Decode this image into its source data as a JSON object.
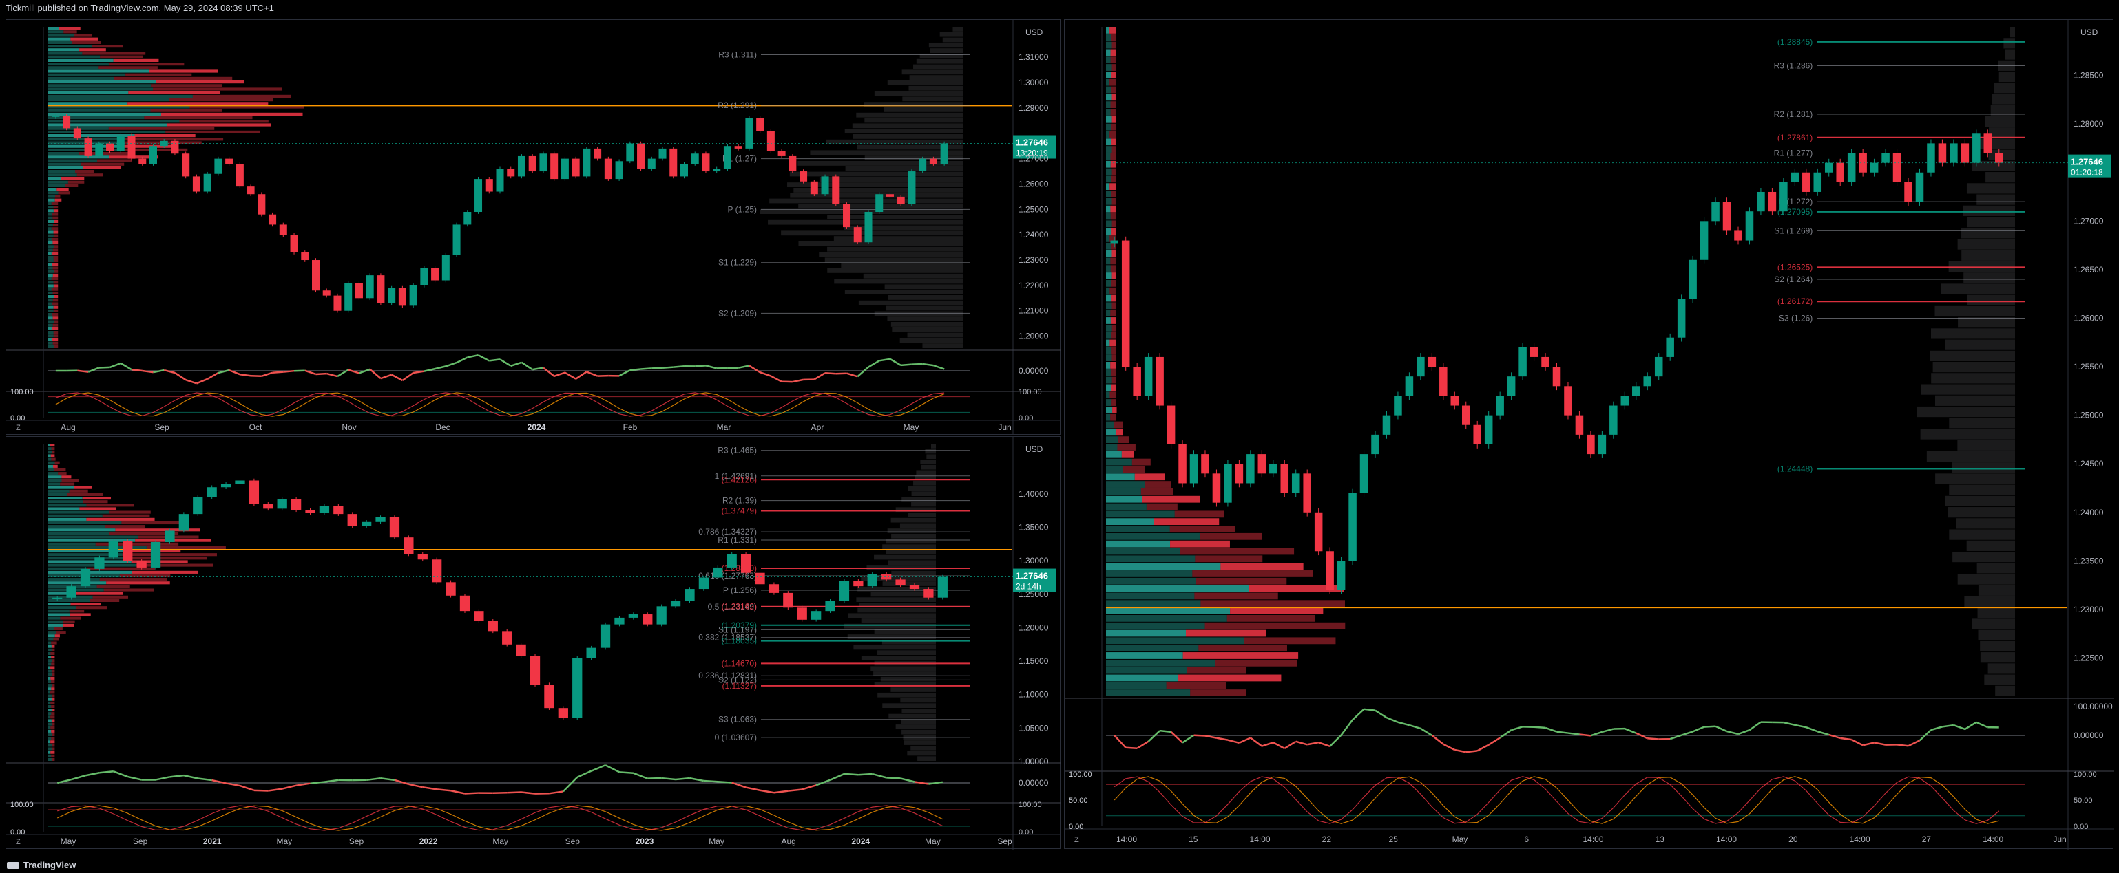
{
  "header": {
    "publisher_line": "Tickmill published on TradingView.com, May 29, 2024 08:39 UTC+1"
  },
  "footer": {
    "brand": "TradingView"
  },
  "panels": [
    {
      "id": "daily",
      "currency": "USD",
      "price_tag": "1.27646",
      "countdown": "13:20:19",
      "chart_data": {
        "type": "candlestick",
        "symbol": "GBPUSD",
        "x_ticks": [
          "Aug",
          "Sep",
          "Oct",
          "Nov",
          "Dec",
          "2024",
          "Feb",
          "Mar",
          "Apr",
          "May",
          "Jun"
        ],
        "y_ticks": [
          "1.31000",
          "1.30000",
          "1.29000",
          "1.28000",
          "1.27000",
          "1.26000",
          "1.25000",
          "1.24000",
          "1.23000",
          "1.22000",
          "1.21000",
          "1.20000"
        ],
        "ylim": [
          1.195,
          1.322
        ],
        "closes": [
          1.287,
          1.282,
          1.278,
          1.271,
          1.276,
          1.273,
          1.279,
          1.27,
          1.268,
          1.275,
          1.277,
          1.272,
          1.263,
          1.257,
          1.264,
          1.27,
          1.268,
          1.259,
          1.256,
          1.248,
          1.244,
          1.24,
          1.233,
          1.23,
          1.218,
          1.216,
          1.21,
          1.221,
          1.215,
          1.224,
          1.213,
          1.219,
          1.212,
          1.22,
          1.227,
          1.222,
          1.232,
          1.244,
          1.249,
          1.262,
          1.257,
          1.266,
          1.263,
          1.271,
          1.265,
          1.272,
          1.262,
          1.27,
          1.263,
          1.274,
          1.27,
          1.262,
          1.269,
          1.276,
          1.266,
          1.27,
          1.274,
          1.263,
          1.268,
          1.272,
          1.265,
          1.266,
          1.275,
          1.274,
          1.286,
          1.281,
          1.273,
          1.271,
          1.265,
          1.261,
          1.256,
          1.263,
          1.252,
          1.243,
          1.237,
          1.249,
          1.256,
          1.255,
          1.252,
          1.265,
          1.27,
          1.268,
          1.276
        ],
        "levels": [
          {
            "label": "R3 (1.311)",
            "value": 1.311
          },
          {
            "label": "R2 (1.291)",
            "value": 1.291
          },
          {
            "label": "R1 (1.27)",
            "value": 1.27
          },
          {
            "label": "P (1.25)",
            "value": 1.25
          },
          {
            "label": "S1 (1.229)",
            "value": 1.229
          },
          {
            "label": "S2 (1.209)",
            "value": 1.209
          }
        ],
        "oscillator_ticks": [
          "0.00000"
        ],
        "stoch_ticks": [
          "100.00",
          "0.00"
        ]
      }
    },
    {
      "id": "weekly",
      "currency": "USD",
      "price_tag": "1.27646",
      "countdown": "2d 14h",
      "chart_data": {
        "type": "candlestick",
        "symbol": "GBPUSD",
        "x_ticks": [
          "May",
          "Sep",
          "2021",
          "May",
          "Sep",
          "2022",
          "May",
          "Sep",
          "2023",
          "May",
          "Aug",
          "2024",
          "May",
          "Sep"
        ],
        "y_ticks": [
          "1.40000",
          "1.35000",
          "1.30000",
          "1.25000",
          "1.20000",
          "1.15000",
          "1.10000",
          "1.05000",
          "1.00000"
        ],
        "ylim": [
          1.0,
          1.475
        ],
        "closes": [
          1.245,
          1.262,
          1.288,
          1.305,
          1.33,
          1.3,
          1.29,
          1.328,
          1.345,
          1.37,
          1.395,
          1.41,
          1.415,
          1.42,
          1.385,
          1.378,
          1.392,
          1.376,
          1.372,
          1.382,
          1.37,
          1.352,
          1.358,
          1.365,
          1.335,
          1.31,
          1.302,
          1.268,
          1.248,
          1.225,
          1.21,
          1.195,
          1.175,
          1.158,
          1.115,
          1.08,
          1.065,
          1.155,
          1.17,
          1.205,
          1.215,
          1.22,
          1.205,
          1.232,
          1.24,
          1.258,
          1.275,
          1.29,
          1.31,
          1.282,
          1.265,
          1.252,
          1.23,
          1.212,
          1.225,
          1.24,
          1.27,
          1.262,
          1.28,
          1.272,
          1.264,
          1.258,
          1.245,
          1.276
        ],
        "levels": [
          {
            "label": "1 (1.42691)",
            "value": 1.42691
          },
          {
            "label": "(1.42126)",
            "value": 1.42126
          },
          {
            "label": "R3 (1.465)",
            "value": 1.465
          },
          {
            "label": "R2 (1.39)",
            "value": 1.39
          },
          {
            "label": "(1.37479)",
            "value": 1.37479
          },
          {
            "label": "0.786 (1.34327)",
            "value": 1.34327
          },
          {
            "label": "R1 (1.331)",
            "value": 1.331
          },
          {
            "label": "(1.28890)",
            "value": 1.2889
          },
          {
            "label": "0.618 (1.27763)",
            "value": 1.27763
          },
          {
            "label": "P (1.256)",
            "value": 1.256
          },
          {
            "label": "0.5 (1.23149)",
            "value": 1.23149
          },
          {
            "label": "(1.23162)",
            "value": 1.23162
          },
          {
            "label": "(1.20379)",
            "value": 1.20379
          },
          {
            "label": "S1 (1.197)",
            "value": 1.197
          },
          {
            "label": "0.382 (1.18537)",
            "value": 1.18537
          },
          {
            "label": "(1.18035)",
            "value": 1.18035
          },
          {
            "label": "(1.14670)",
            "value": 1.1467
          },
          {
            "label": "0.236 (1.12831)",
            "value": 1.12831
          },
          {
            "label": "S2 (1.122)",
            "value": 1.122
          },
          {
            "label": "(1.11327)",
            "value": 1.11327
          },
          {
            "label": "S3 (1.063)",
            "value": 1.063
          },
          {
            "label": "0 (1.03607)",
            "value": 1.03607
          }
        ],
        "oscillator_ticks": [
          "0.00000"
        ],
        "stoch_ticks": [
          "100.00",
          "0.00"
        ]
      }
    },
    {
      "id": "hourly",
      "currency": "USD",
      "price_tag": "1.27646",
      "countdown": "01:20:18",
      "chart_data": {
        "type": "candlestick",
        "symbol": "GBPUSD",
        "x_ticks": [
          "14:00",
          "15",
          "14:00",
          "22",
          "25",
          "May",
          "6",
          "14:00",
          "13",
          "14:00",
          "20",
          "14:00",
          "27",
          "14:00",
          "Jun"
        ],
        "y_ticks": [
          "1.28500",
          "1.28000",
          "1.27500",
          "1.27000",
          "1.26500",
          "1.26000",
          "1.25500",
          "1.25000",
          "1.24500",
          "1.24000",
          "1.23500",
          "1.23000",
          "1.22500"
        ],
        "ylim": [
          1.221,
          1.29
        ],
        "closes": [
          1.268,
          1.255,
          1.252,
          1.256,
          1.251,
          1.247,
          1.243,
          1.246,
          1.244,
          1.241,
          1.245,
          1.243,
          1.246,
          1.244,
          1.245,
          1.242,
          1.244,
          1.24,
          1.236,
          1.232,
          1.235,
          1.242,
          1.246,
          1.248,
          1.25,
          1.252,
          1.254,
          1.256,
          1.255,
          1.252,
          1.251,
          1.249,
          1.247,
          1.25,
          1.252,
          1.254,
          1.257,
          1.256,
          1.255,
          1.253,
          1.25,
          1.248,
          1.246,
          1.248,
          1.251,
          1.252,
          1.253,
          1.254,
          1.256,
          1.258,
          1.262,
          1.266,
          1.27,
          1.272,
          1.269,
          1.268,
          1.271,
          1.273,
          1.271,
          1.274,
          1.275,
          1.273,
          1.275,
          1.276,
          1.274,
          1.277,
          1.275,
          1.276,
          1.277,
          1.274,
          1.272,
          1.275,
          1.278,
          1.276,
          1.278,
          1.276,
          1.279,
          1.277,
          1.276
        ],
        "levels": [
          {
            "label": "(1.28845)",
            "value": 1.28845
          },
          {
            "label": "R3 (1.286)",
            "value": 1.286
          },
          {
            "label": "R2 (1.281)",
            "value": 1.281
          },
          {
            "label": "R1 (1.277)",
            "value": 1.277
          },
          {
            "label": "(1.27861)",
            "value": 1.27861
          },
          {
            "label": "P (1.272)",
            "value": 1.272
          },
          {
            "label": "(1.27095)",
            "value": 1.27095
          },
          {
            "label": "S1 (1.269)",
            "value": 1.269
          },
          {
            "label": "(1.26525)",
            "value": 1.26525
          },
          {
            "label": "S2 (1.264)",
            "value": 1.264
          },
          {
            "label": "(1.26172)",
            "value": 1.26172
          },
          {
            "label": "S3 (1.26)",
            "value": 1.26
          },
          {
            "label": "(1.24448)",
            "value": 1.24448
          }
        ],
        "oscillator_ticks": [
          "100.00000",
          "0.00000"
        ],
        "stoch_ticks": [
          "100.00",
          "50.00",
          "0.00"
        ]
      }
    }
  ]
}
